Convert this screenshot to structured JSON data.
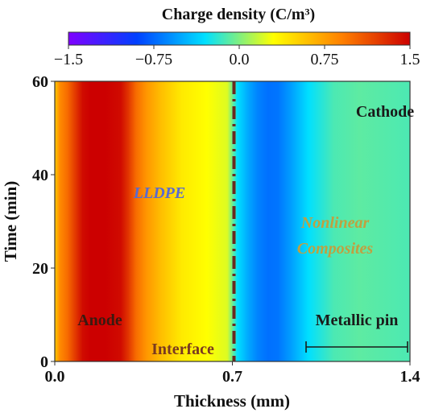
{
  "chart_data": {
    "type": "heatmap",
    "title": "",
    "colorbar": {
      "label": "Charge density (C/m³)",
      "min": -1.5,
      "max": 1.5,
      "ticks": [
        -1.5,
        -0.75,
        0.0,
        0.75,
        1.5
      ],
      "tick_labels": [
        "−1.5",
        "−0.75",
        "0.0",
        "0.75",
        "1.5"
      ],
      "colormap": [
        "#7f00ff",
        "#0040ff",
        "#00e0ff",
        "#ffff00",
        "#ff8000",
        "#cc0000"
      ]
    },
    "xlabel": "Thickness (mm)",
    "ylabel": "Time (min)",
    "xlim": [
      0.0,
      1.4
    ],
    "ylim": [
      0,
      60
    ],
    "xticks": [
      0.0,
      0.7,
      1.4
    ],
    "xtick_labels": [
      "0.0",
      "0.7",
      "1.4"
    ],
    "yticks": [
      0,
      20,
      40,
      60
    ],
    "ytick_labels": [
      "0",
      "20",
      "40",
      "60"
    ],
    "profile": {
      "thickness_mm": [
        0.0,
        0.02,
        0.05,
        0.07,
        0.09,
        0.11,
        0.14,
        0.2,
        0.26,
        0.29,
        0.32,
        0.36,
        0.42,
        0.5,
        0.6,
        0.68,
        0.72,
        0.76,
        0.8,
        0.84,
        0.88,
        0.93,
        1.0,
        1.1,
        1.2,
        1.3,
        1.4
      ],
      "charge_density": [
        0.55,
        0.85,
        1.0,
        1.15,
        1.3,
        1.45,
        1.5,
        1.5,
        1.45,
        1.25,
        1.0,
        0.8,
        0.6,
        0.4,
        0.3,
        0.22,
        -0.3,
        -0.5,
        -0.65,
        -0.72,
        -0.7,
        -0.55,
        -0.3,
        -0.12,
        -0.08,
        -0.1,
        -0.12
      ]
    },
    "annotations": {
      "anode": "Anode",
      "cathode": "Cathode",
      "interface": "Interface",
      "lldpe": "LLDPE",
      "composites_line1": "Nonlinear",
      "composites_line2": "Composites",
      "metallic_pin": "Metallic pin"
    },
    "colors": {
      "interface_line": "#6b2a1e",
      "label_dark": "#1a1a1a",
      "anode_text": "#3a1a10",
      "interface_text": "#7a3a20",
      "lldpe_text": "#5a6ad0",
      "composites_text": "#c0a040"
    }
  }
}
